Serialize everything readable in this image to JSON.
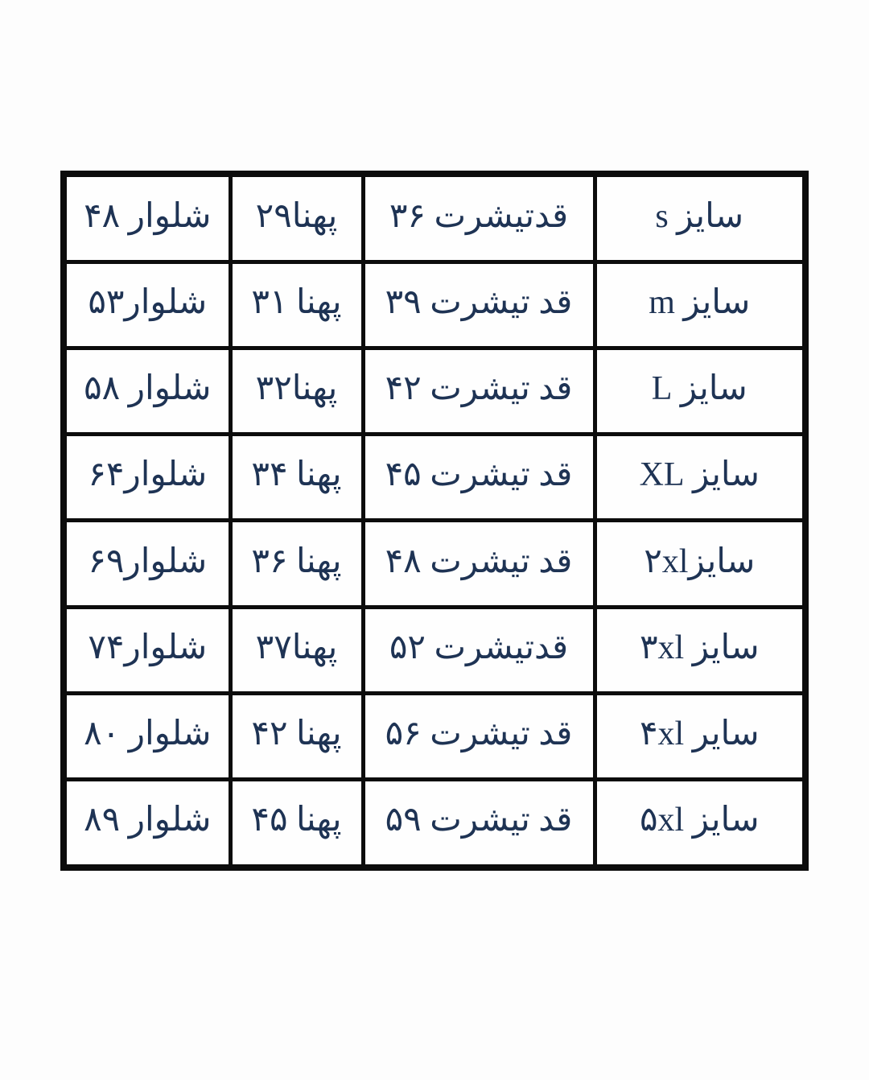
{
  "page": {
    "background": "#fdfdfd"
  },
  "table": {
    "text_color": "#1e3354",
    "border_color": "#0c0c0c",
    "cell_background": "#fefefe",
    "columns": [
      "size",
      "shirt_length",
      "width",
      "pants"
    ],
    "rows": [
      {
        "size": "سایز s",
        "shirt_length": "قدتیشرت ۳۶",
        "width": "پهنا۲۹",
        "pants": "شلوار ۴۸"
      },
      {
        "size": "سایز m",
        "shirt_length": "قد تیشرت ۳۹",
        "width": "پهنا ۳۱",
        "pants": "شلوار۵۳"
      },
      {
        "size": "سایز L",
        "shirt_length": "قد تیشرت ۴۲",
        "width": "پهنا۳۲",
        "pants": "شلوار ۵۸"
      },
      {
        "size": "سایز XL",
        "shirt_length": "قد تیشرت ۴۵",
        "width": "پهنا ۳۴",
        "pants": "شلوار۶۴"
      },
      {
        "size": "سایز۲xl",
        "shirt_length": "قد تیشرت ۴۸",
        "width": "پهنا ۳۶",
        "pants": "شلوار۶۹"
      },
      {
        "size": "سایز ۳xl",
        "shirt_length": "قدتیشرت ۵۲",
        "width": "پهنا۳۷",
        "pants": "شلوار۷۴"
      },
      {
        "size": "سایر ۴xl",
        "shirt_length": "قد تیشرت ۵۶",
        "width": "پهنا ۴۲",
        "pants": "شلوار ۸۰"
      },
      {
        "size": "سایز ۵xl",
        "shirt_length": "قد تیشرت ۵۹",
        "width": "پهنا ۴۵",
        "pants": "شلوار ۸۹"
      }
    ]
  }
}
